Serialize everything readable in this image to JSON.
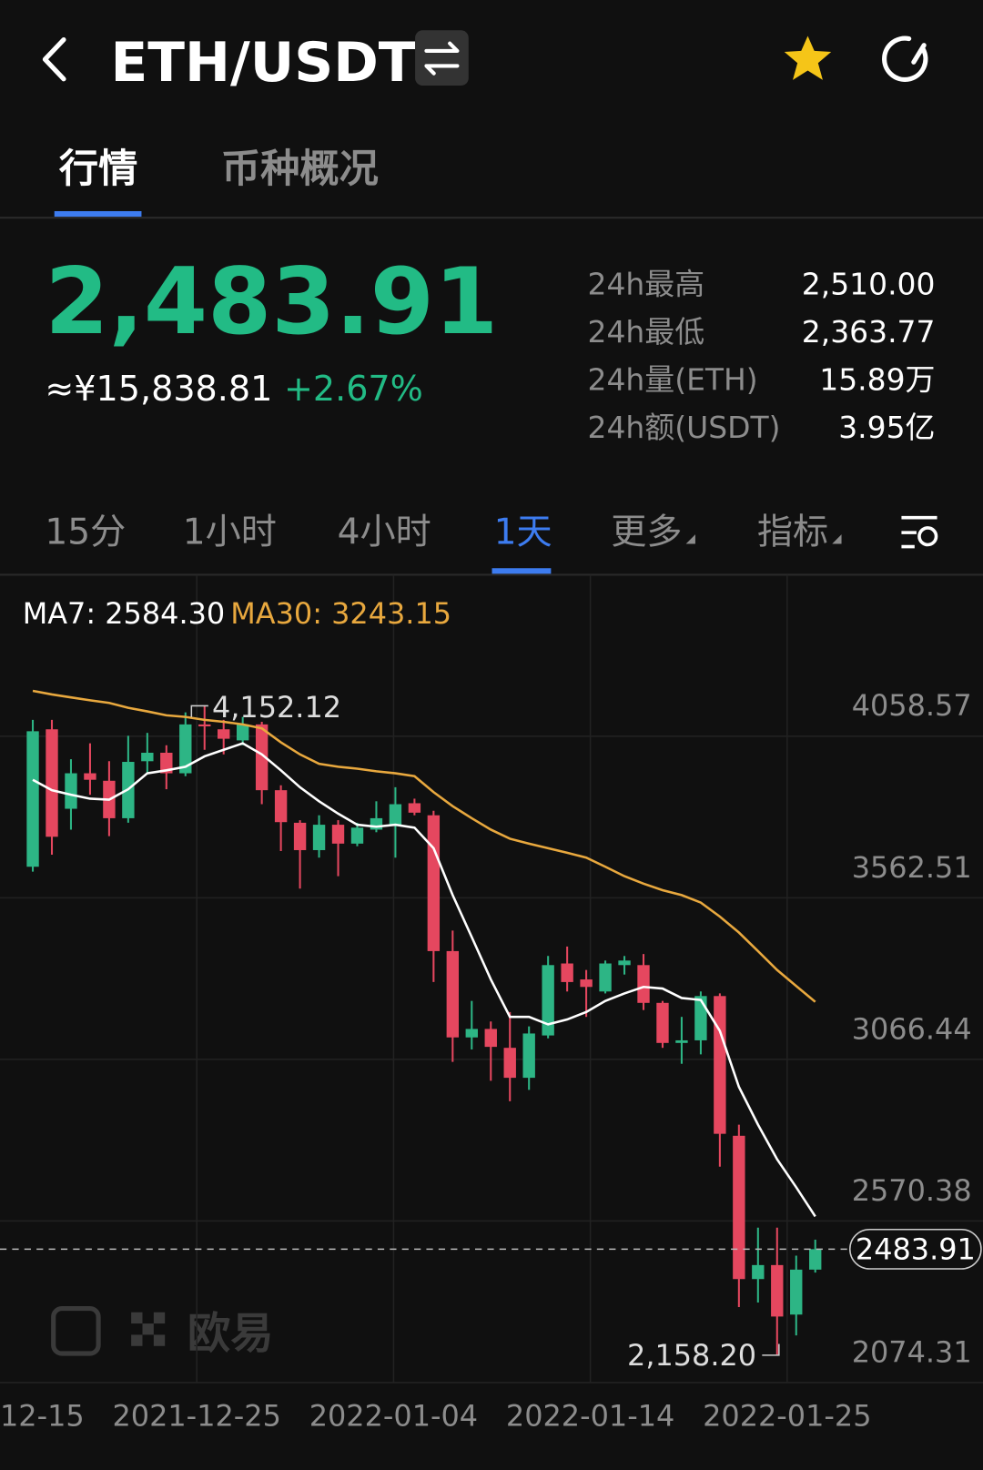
{
  "header": {
    "title": "ETH/USDT"
  },
  "tabs": [
    "行情",
    "币种概况"
  ],
  "ticker": {
    "price": "2,483.91",
    "cny": "≈¥15,838.81",
    "change": "+2.67%"
  },
  "stats": [
    {
      "label": "24h最高",
      "value": "2,510.00"
    },
    {
      "label": "24h最低",
      "value": "2,363.77"
    },
    {
      "label": "24h量(ETH)",
      "value": "15.89万"
    },
    {
      "label": "24h额(USDT)",
      "value": "3.95亿"
    }
  ],
  "intervals": [
    "15分",
    "1小时",
    "4小时",
    "1天",
    "更多",
    "指标"
  ],
  "watermark": "欧易",
  "chart_data": {
    "type": "candlestick",
    "up_color": "#2db585",
    "down_color": "#e5475f",
    "open": [
      3658,
      4080,
      3836,
      3945,
      3922,
      3807,
      3982,
      4008,
      3945,
      4095,
      4080,
      4046,
      4095,
      3893,
      3793,
      3709,
      3787,
      3729,
      3772,
      3787,
      3853,
      3816,
      3399,
      3134,
      3160,
      3102,
      3010,
      3140,
      3361,
      3312,
      3275,
      3356,
      3356,
      3240,
      3117,
      3125,
      3261,
      2832,
      2392,
      2435,
      2283,
      2421
    ],
    "high": [
      4109,
      4109,
      3988,
      4037,
      3982,
      4060,
      4069,
      4031,
      4132,
      4152.12,
      4109,
      4118,
      4103,
      3908,
      3801,
      3816,
      3801,
      3793,
      3859,
      3902,
      3867,
      3830,
      3462,
      3246,
      3183,
      3212,
      3168,
      3384,
      3413,
      3341,
      3370,
      3384,
      3390,
      3246,
      3197,
      3275,
      3269,
      2866,
      2550,
      2550,
      2464,
      2513
    ],
    "low": [
      3643,
      3695,
      3772,
      3879,
      3752,
      3793,
      3945,
      3896,
      3936,
      4017,
      4003,
      4031,
      3850,
      3706,
      3591,
      3686,
      3629,
      3721,
      3764,
      3686,
      3816,
      3304,
      3059,
      3097,
      3001,
      2938,
      2973,
      3131,
      3275,
      3197,
      3269,
      3327,
      3218,
      3102,
      3053,
      3082,
      2737,
      2306,
      2320,
      2158.2,
      2219,
      2412
    ],
    "close": [
      4074,
      3750,
      3945,
      3925,
      3807,
      3980,
      4008,
      3945,
      4095,
      4089,
      4051,
      4095,
      3893,
      3795,
      3709,
      3787,
      3729,
      3778,
      3807,
      3850,
      3824,
      3399,
      3134,
      3160,
      3105,
      3010,
      3146,
      3356,
      3304,
      3289,
      3361,
      3370,
      3240,
      3117,
      3125,
      3261,
      2838,
      2392,
      2435,
      2277,
      2421,
      2483.91
    ],
    "series": [
      {
        "name": "MA7: 2584.30",
        "color": "#ffffff",
        "values": [
          3925,
          3893,
          3879,
          3867,
          3864,
          3896,
          3945,
          3954,
          3965,
          3997,
          4017,
          4037,
          4003,
          3954,
          3902,
          3859,
          3821,
          3787,
          3781,
          3787,
          3778,
          3715,
          3571,
          3442,
          3312,
          3197,
          3197,
          3174,
          3189,
          3212,
          3246,
          3269,
          3289,
          3284,
          3255,
          3249,
          3154,
          2982,
          2866,
          2760,
          2674,
          2584.3
        ]
      },
      {
        "name": "MA30: 3243.15",
        "color": "#e8a83e",
        "values": [
          4198,
          4187,
          4178,
          4169,
          4161,
          4146,
          4135,
          4123,
          4118,
          4109,
          4103,
          4095,
          4083,
          4040,
          4003,
          3974,
          3965,
          3959,
          3951,
          3945,
          3936,
          3887,
          3844,
          3807,
          3772,
          3744,
          3729,
          3715,
          3701,
          3686,
          3658,
          3629,
          3606,
          3586,
          3571,
          3548,
          3505,
          3456,
          3399,
          3341,
          3292,
          3243.15
        ]
      }
    ],
    "high_label": "4,152.12",
    "low_label": "2,158.20",
    "current_price": 2483.91,
    "ylim": [
      2074.31,
      4554.5
    ],
    "yticks": [
      4058.57,
      3562.51,
      3066.44,
      2570.38,
      2074.31
    ],
    "x_labels": [
      "12-15",
      "2021-12-25",
      "2022-01-04",
      "2022-01-14",
      "2022-01-25"
    ]
  }
}
